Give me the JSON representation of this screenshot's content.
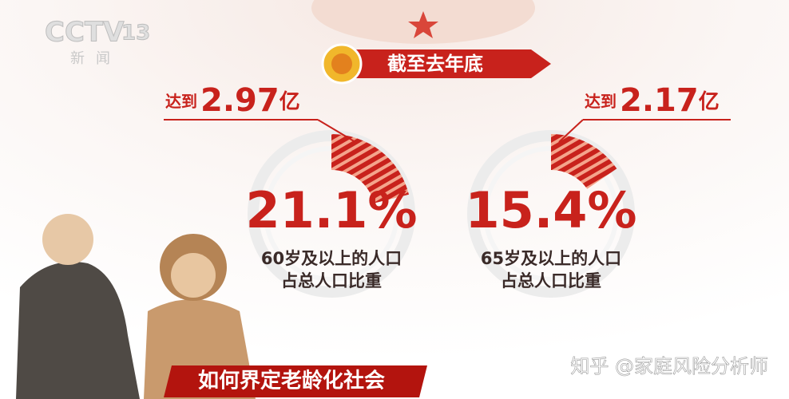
{
  "logo": {
    "channel": "CCTV",
    "number": "13",
    "subtitle": "新闻"
  },
  "header": "截至去年底",
  "chart_data": [
    {
      "type": "donut",
      "prefix": "达到",
      "total": 2.97,
      "unit": "亿",
      "values": [
        21.1
      ],
      "value_labels": [
        "21.1%"
      ],
      "caption": [
        "60岁及以上的人口",
        "占总人口比重"
      ]
    },
    {
      "type": "donut",
      "prefix": "达到",
      "total": 2.17,
      "unit": "亿",
      "values": [
        15.4
      ],
      "value_labels": [
        "15.4%"
      ],
      "caption": [
        "65岁及以上的人口",
        "占总人口比重"
      ]
    }
  ],
  "banner": "如何界定老龄化社会",
  "watermark": "知乎 @家庭风险分析师"
}
